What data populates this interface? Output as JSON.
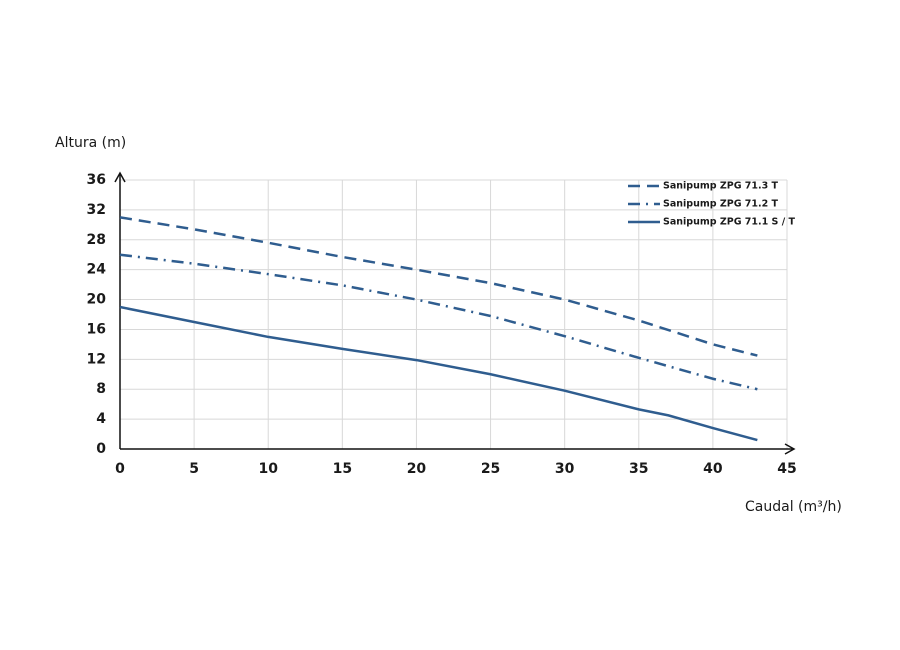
{
  "chart_data": {
    "type": "line",
    "y_label": "Altura (m)",
    "x_label": "Caudal (m³/h)",
    "xlim": [
      0,
      45
    ],
    "ylim": [
      0,
      36
    ],
    "xticks": [
      0,
      5,
      10,
      15,
      20,
      25,
      30,
      35,
      40,
      45
    ],
    "yticks": [
      0,
      4,
      8,
      12,
      16,
      20,
      24,
      28,
      32,
      36
    ],
    "grid": true,
    "legend": "upper right",
    "series": [
      {
        "name": "Sanipump ZPG 71.3 T",
        "color": "#2f5d8f",
        "style": "dashed",
        "x": [
          0,
          5,
          10,
          15,
          20,
          25,
          30,
          35,
          40,
          43
        ],
        "values": [
          31,
          29.4,
          27.6,
          25.7,
          24,
          22.2,
          20,
          17.2,
          14,
          12.5
        ]
      },
      {
        "name": "Sanipump ZPG 71.2 T",
        "color": "#2f5d8f",
        "style": "dashdot",
        "x": [
          0,
          5,
          10,
          15,
          20,
          25,
          30,
          35,
          40,
          43
        ],
        "values": [
          26,
          24.8,
          23.4,
          21.9,
          20,
          17.8,
          15.1,
          12.2,
          9.4,
          8
        ]
      },
      {
        "name": "Sanipump ZPG 71.1 S / T",
        "color": "#2f5d8f",
        "style": "solid",
        "x": [
          0,
          5,
          10,
          15,
          20,
          25,
          30,
          35,
          37,
          40,
          43
        ],
        "values": [
          19,
          17,
          15,
          13.4,
          11.9,
          10,
          7.8,
          5.3,
          4.5,
          2.8,
          1.2
        ]
      }
    ]
  }
}
